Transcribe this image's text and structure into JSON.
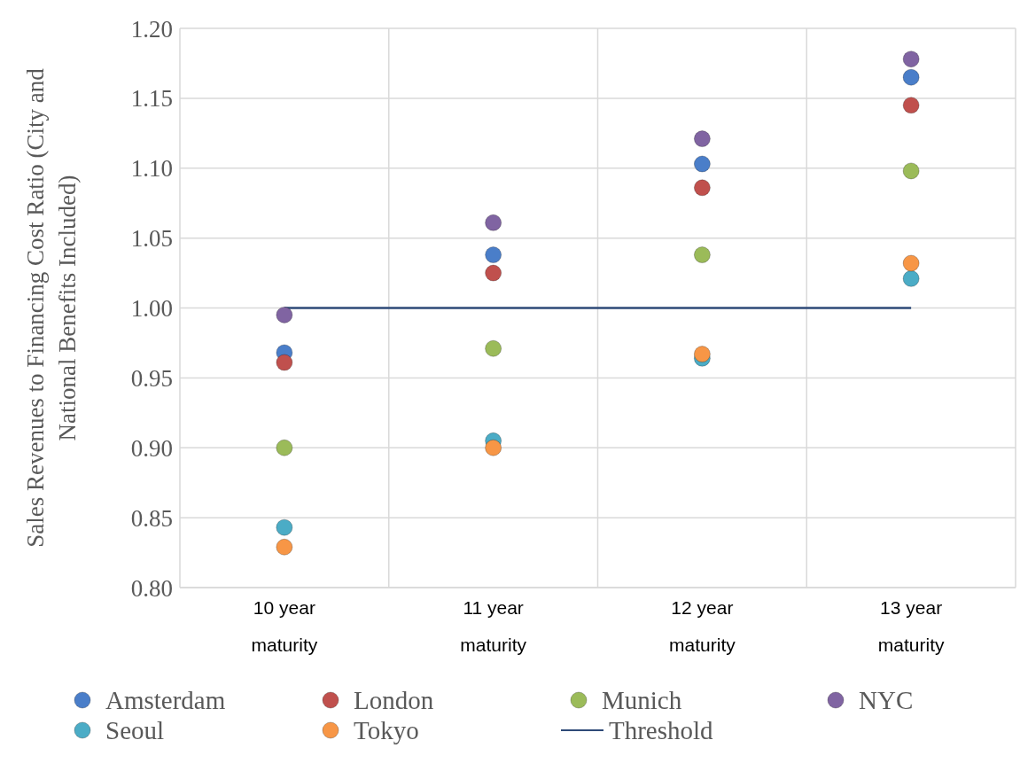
{
  "chart_data": {
    "type": "scatter",
    "ylabel": "Sales Revenues to Financing Cost Ratio (City and National Benefits Included)",
    "categories": [
      "10 year maturity",
      "11 year maturity",
      "12 year maturity",
      "13 year maturity"
    ],
    "series": [
      {
        "name": "Amsterdam",
        "color": "#4a7ec9",
        "values": [
          0.968,
          1.038,
          1.103,
          1.165
        ]
      },
      {
        "name": "London",
        "color": "#c0504d",
        "values": [
          0.961,
          1.025,
          1.086,
          1.145
        ]
      },
      {
        "name": "Munich",
        "color": "#9bbb59",
        "values": [
          0.9,
          0.971,
          1.038,
          1.098
        ]
      },
      {
        "name": "NYC",
        "color": "#8064a2",
        "values": [
          0.995,
          1.061,
          1.121,
          1.178
        ]
      },
      {
        "name": "Seoul",
        "color": "#4bacc6",
        "values": [
          0.843,
          0.905,
          0.964,
          1.021
        ]
      },
      {
        "name": "Tokyo",
        "color": "#f79646",
        "values": [
          0.829,
          0.9,
          0.967,
          1.032
        ]
      },
      {
        "name": "Threshold",
        "type": "line",
        "marker": "none",
        "color": "#2e4a78",
        "values": [
          1.0,
          1.0,
          1.0,
          1.0
        ]
      }
    ],
    "ylim": [
      0.8,
      1.2
    ],
    "yticks": [
      {
        "value": 0.8,
        "label": "0.80"
      },
      0.85,
      {
        "value": 0.9,
        "label": "0.90"
      },
      0.95,
      {
        "value": 1.0,
        "label": "1.00"
      },
      1.05,
      {
        "value": 1.1,
        "label": "1.10"
      },
      1.15,
      {
        "value": 1.2,
        "label": "1.20"
      }
    ],
    "grid": true,
    "legend": "bottom",
    "marker": "circle",
    "line_style": "solid"
  }
}
